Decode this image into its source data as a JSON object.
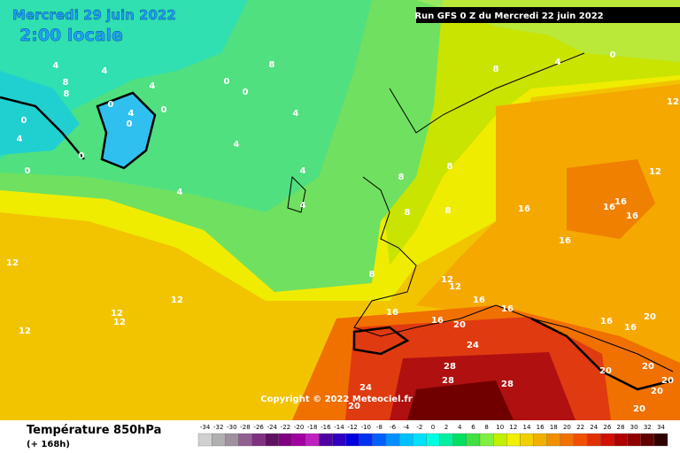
{
  "header": {
    "date": "Mercredi 29 juin 2022",
    "time": "2:00 locale",
    "run": "Run GFS 0 Z du Mercredi 22 juin 2022",
    "copyright": "Copyright © 2022 Meteociel.fr"
  },
  "footer": {
    "title": "Température 850hPa",
    "lead": "(+ 168h)"
  },
  "contour_labels": [
    4,
    4,
    8,
    8,
    4,
    0,
    0,
    8,
    0,
    4,
    0,
    0,
    0,
    4,
    0,
    0,
    4,
    4,
    4,
    4,
    4,
    8,
    4,
    0,
    12,
    12,
    12,
    12,
    12,
    8,
    8,
    8,
    8,
    8,
    16,
    16,
    16,
    16,
    12,
    12,
    16,
    12,
    12,
    16,
    16,
    16,
    16,
    20,
    24,
    28,
    28,
    28,
    24,
    20,
    16,
    16,
    20,
    20,
    20,
    20,
    20,
    20
  ],
  "scale": {
    "values": [
      -34,
      -32,
      -30,
      -28,
      -26,
      -24,
      -22,
      -20,
      -18,
      -16,
      -14,
      -12,
      -10,
      -8,
      -6,
      -4,
      -2,
      0,
      2,
      4,
      6,
      8,
      10,
      12,
      14,
      16,
      18,
      20,
      22,
      24,
      26,
      28,
      30,
      32,
      34
    ],
    "colors": [
      "#d0d0d0",
      "#b0b0b0",
      "#a090a0",
      "#906090",
      "#803080",
      "#601060",
      "#800080",
      "#a000a0",
      "#c020c0",
      "#5000a0",
      "#3000c0",
      "#0000e0",
      "#0030f0",
      "#0060ff",
      "#0090ff",
      "#00c0ff",
      "#00e0ff",
      "#00ffe0",
      "#00f0a0",
      "#00e060",
      "#40e040",
      "#80f040",
      "#c0f000",
      "#f0f000",
      "#f0d000",
      "#f0b000",
      "#f09000",
      "#f07000",
      "#f05000",
      "#e03000",
      "#d01000",
      "#b00000",
      "#900000",
      "#600000",
      "#300000"
    ]
  }
}
